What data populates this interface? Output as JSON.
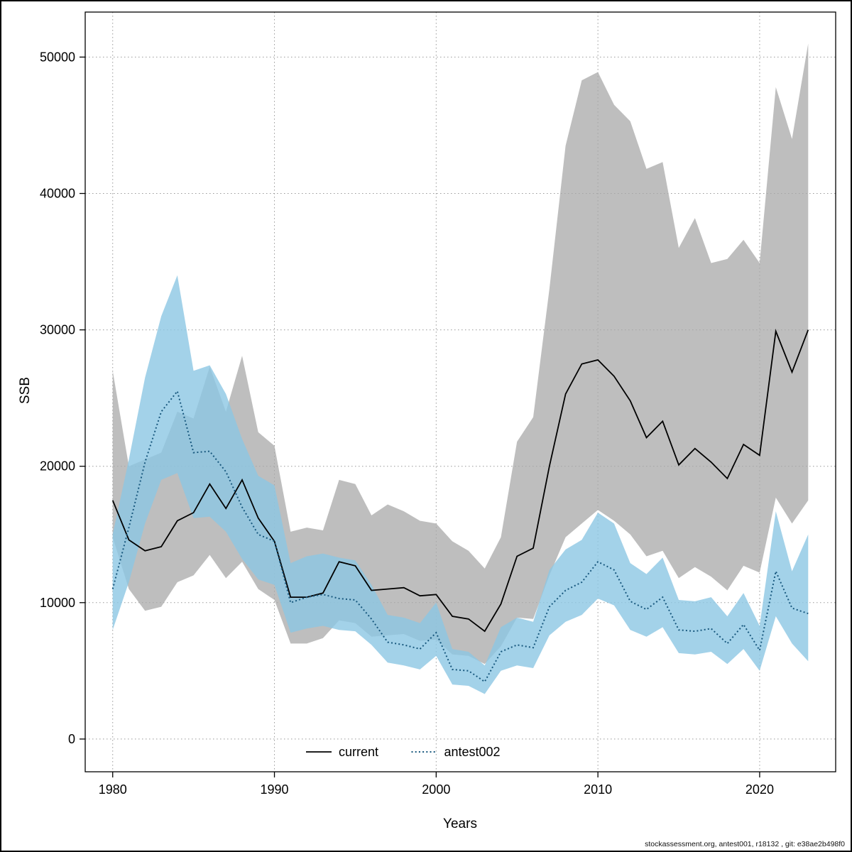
{
  "footer": {
    "text": "stockassessment.org, antest001, r18132 , git: e38ae2b498f0"
  },
  "chart_data": {
    "type": "line",
    "title": "",
    "xlabel": "Years",
    "ylabel": "SSB",
    "grid": "dotted",
    "x_ticks": [
      1980,
      1990,
      2000,
      2010,
      2020
    ],
    "y_ticks": [
      0,
      10000,
      20000,
      30000,
      40000,
      50000
    ],
    "xlim": [
      1978.3,
      2024.7
    ],
    "ylim": [
      -2400,
      53300
    ],
    "legend": {
      "position": "bottom-center-inside",
      "entries": [
        {
          "label": "current",
          "color": "#000000",
          "style": "solid"
        },
        {
          "label": "antest002",
          "color": "#18587e",
          "style": "dotted"
        }
      ]
    },
    "years": [
      1980,
      1981,
      1982,
      1983,
      1984,
      1985,
      1986,
      1987,
      1988,
      1989,
      1990,
      1991,
      1992,
      1993,
      1994,
      1995,
      1996,
      1997,
      1998,
      1999,
      2000,
      2001,
      2002,
      2003,
      2004,
      2005,
      2006,
      2007,
      2008,
      2009,
      2010,
      2011,
      2012,
      2013,
      2014,
      2015,
      2016,
      2017,
      2018,
      2019,
      2020,
      2021,
      2022,
      2023
    ],
    "series": [
      {
        "name": "current",
        "line_color": "#000000",
        "line_style": "solid",
        "band_color": "#a8a8a8",
        "band_opacity": 0.75,
        "mean": [
          17500,
          14600,
          13800,
          14100,
          16000,
          16600,
          18700,
          16900,
          19000,
          16200,
          14500,
          10400,
          10400,
          10700,
          13000,
          12700,
          10900,
          11000,
          11100,
          10500,
          10600,
          9000,
          8800,
          7900,
          9900,
          13400,
          14000,
          20000,
          25300,
          27500,
          27800,
          26600,
          24800,
          22100,
          23300,
          20100,
          21300,
          20300,
          19100,
          21600,
          20800,
          29900,
          26900,
          30000
        ],
        "lo": [
          14800,
          11000,
          9400,
          9700,
          11500,
          12000,
          13500,
          11800,
          13000,
          11000,
          10200,
          7000,
          7000,
          7400,
          8700,
          8500,
          7500,
          7600,
          7700,
          7200,
          7300,
          6200,
          6100,
          5500,
          6800,
          8900,
          8800,
          12000,
          14800,
          15800,
          16800,
          16000,
          15000,
          13400,
          13800,
          11800,
          12600,
          11900,
          10900,
          12700,
          12200,
          17700,
          15800,
          17500
        ],
        "hi": [
          27000,
          20000,
          20500,
          21000,
          24000,
          23500,
          27300,
          24000,
          28100,
          22500,
          21500,
          15200,
          15500,
          15300,
          19000,
          18700,
          16400,
          17200,
          16700,
          16000,
          15800,
          14500,
          13800,
          12500,
          14800,
          21800,
          23600,
          33000,
          43500,
          48300,
          48900,
          46500,
          45300,
          41800,
          42300,
          36000,
          38200,
          34900,
          35200,
          36600,
          34900,
          47800,
          44000,
          51000
        ]
      },
      {
        "name": "antest002",
        "line_color": "#18587e",
        "line_style": "dotted",
        "band_color": "#8cc7e4",
        "band_opacity": 0.8,
        "mean": [
          11000,
          15500,
          20300,
          24000,
          25500,
          21000,
          21100,
          19600,
          17000,
          15000,
          14500,
          10000,
          10400,
          10600,
          10300,
          10200,
          8800,
          7100,
          6900,
          6600,
          7800,
          5100,
          5000,
          4200,
          6400,
          6900,
          6700,
          9700,
          10900,
          11500,
          13000,
          12400,
          10100,
          9500,
          10400,
          8000,
          7900,
          8100,
          7000,
          8400,
          6500,
          12300,
          9600,
          9200
        ],
        "lo": [
          8000,
          11500,
          15800,
          19000,
          19500,
          16200,
          16300,
          15200,
          13200,
          11700,
          11300,
          7800,
          8100,
          8300,
          8000,
          7900,
          6900,
          5600,
          5400,
          5100,
          6100,
          4000,
          3900,
          3300,
          5000,
          5400,
          5200,
          7600,
          8600,
          9100,
          10300,
          9800,
          8000,
          7500,
          8200,
          6300,
          6200,
          6400,
          5500,
          6600,
          5000,
          9000,
          7000,
          5700
        ],
        "hi": [
          15000,
          20500,
          26500,
          31000,
          34000,
          27000,
          27400,
          25300,
          22000,
          19300,
          18600,
          12900,
          13400,
          13600,
          13300,
          13100,
          11300,
          9100,
          8900,
          8500,
          10000,
          6600,
          6400,
          5400,
          8200,
          8900,
          8600,
          12400,
          13900,
          14600,
          16600,
          15800,
          12900,
          12100,
          13300,
          10200,
          10100,
          10400,
          9000,
          10700,
          8300,
          16700,
          12300,
          15000
        ]
      }
    ]
  }
}
